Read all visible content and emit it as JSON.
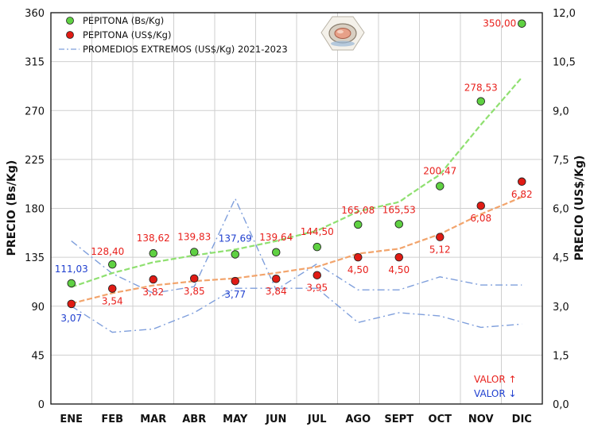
{
  "chart_data": {
    "type": "line",
    "title": "",
    "categories": [
      "ENE",
      "FEB",
      "MAR",
      "ABR",
      "MAY",
      "JUN",
      "JUL",
      "AGO",
      "SEPT",
      "OCT",
      "NOV",
      "DIC"
    ],
    "ylabel_left": "PRECIO (Bs/Kg)",
    "ylabel_right": "PRECIO (US$/Kg)",
    "ylim_left": [
      0,
      360
    ],
    "ylim_right": [
      0,
      12
    ],
    "yticks_left": [
      "0",
      "45",
      "90",
      "135",
      "180",
      "225",
      "270",
      "315",
      "360"
    ],
    "yticks_right": [
      "0,0",
      "1,5",
      "3,0",
      "4,5",
      "6,0",
      "7,5",
      "9,0",
      "10,5",
      "12,0"
    ],
    "grid": true,
    "legend_position": "top-left",
    "series": [
      {
        "name": "PEPITONA (Bs/Kg)",
        "axis": "left",
        "marker_color": "#5fd142",
        "trend_color": "#8fe070",
        "values": [
          111.03,
          128.4,
          138.62,
          139.83,
          137.69,
          139.64,
          144.5,
          165.08,
          165.53,
          200.47,
          278.53,
          350.0
        ],
        "labels": [
          "111,03",
          "128,40",
          "138,62",
          "139,83",
          "137,69",
          "139,64",
          "144,50",
          "165,08",
          "165,53",
          "200,47",
          "278,53",
          "350,00"
        ],
        "label_colors": [
          "#1f3fcf",
          "#e8201c",
          "#e8201c",
          "#e8201c",
          "#1f3fcf",
          "#e8201c",
          "#e8201c",
          "#e8201c",
          "#e8201c",
          "#e8201c",
          "#e8201c",
          "#e8201c"
        ]
      },
      {
        "name": "PEPITONA (US$/Kg)",
        "axis": "right",
        "marker_color": "#e01b14",
        "trend_color": "#f2a46c",
        "values": [
          3.07,
          3.54,
          3.82,
          3.85,
          3.77,
          3.84,
          3.95,
          4.5,
          4.5,
          5.12,
          6.08,
          6.82
        ],
        "labels": [
          "3,07",
          "3,54",
          "3,82",
          "3,85",
          "3,77",
          "3,84",
          "3,95",
          "4,50",
          "4,50",
          "5,12",
          "6,08",
          "6,82"
        ],
        "label_colors": [
          "#1f3fcf",
          "#e8201c",
          "#e8201c",
          "#e8201c",
          "#1f3fcf",
          "#e8201c",
          "#e8201c",
          "#e8201c",
          "#e8201c",
          "#e8201c",
          "#e8201c",
          "#e8201c"
        ]
      },
      {
        "name": "PROMEDIOS EXTREMOS (US$/Kg) 2021-2023",
        "axis": "right",
        "style": "dash-dot",
        "color": "#7f9fdc",
        "max_values": [
          5.0,
          4.0,
          3.4,
          3.6,
          6.3,
          3.5,
          4.3,
          3.5,
          3.5,
          3.9,
          3.65,
          3.65
        ],
        "min_values": [
          3.0,
          2.2,
          2.3,
          2.8,
          3.55,
          3.55,
          3.55,
          2.5,
          2.8,
          2.7,
          2.35,
          2.45
        ]
      }
    ],
    "annotations": {
      "valor_up": "VALOR ↑",
      "valor_down": "VALOR ↓",
      "valor_up_color": "#e8201c",
      "valor_down_color": "#1f3fcf"
    }
  }
}
